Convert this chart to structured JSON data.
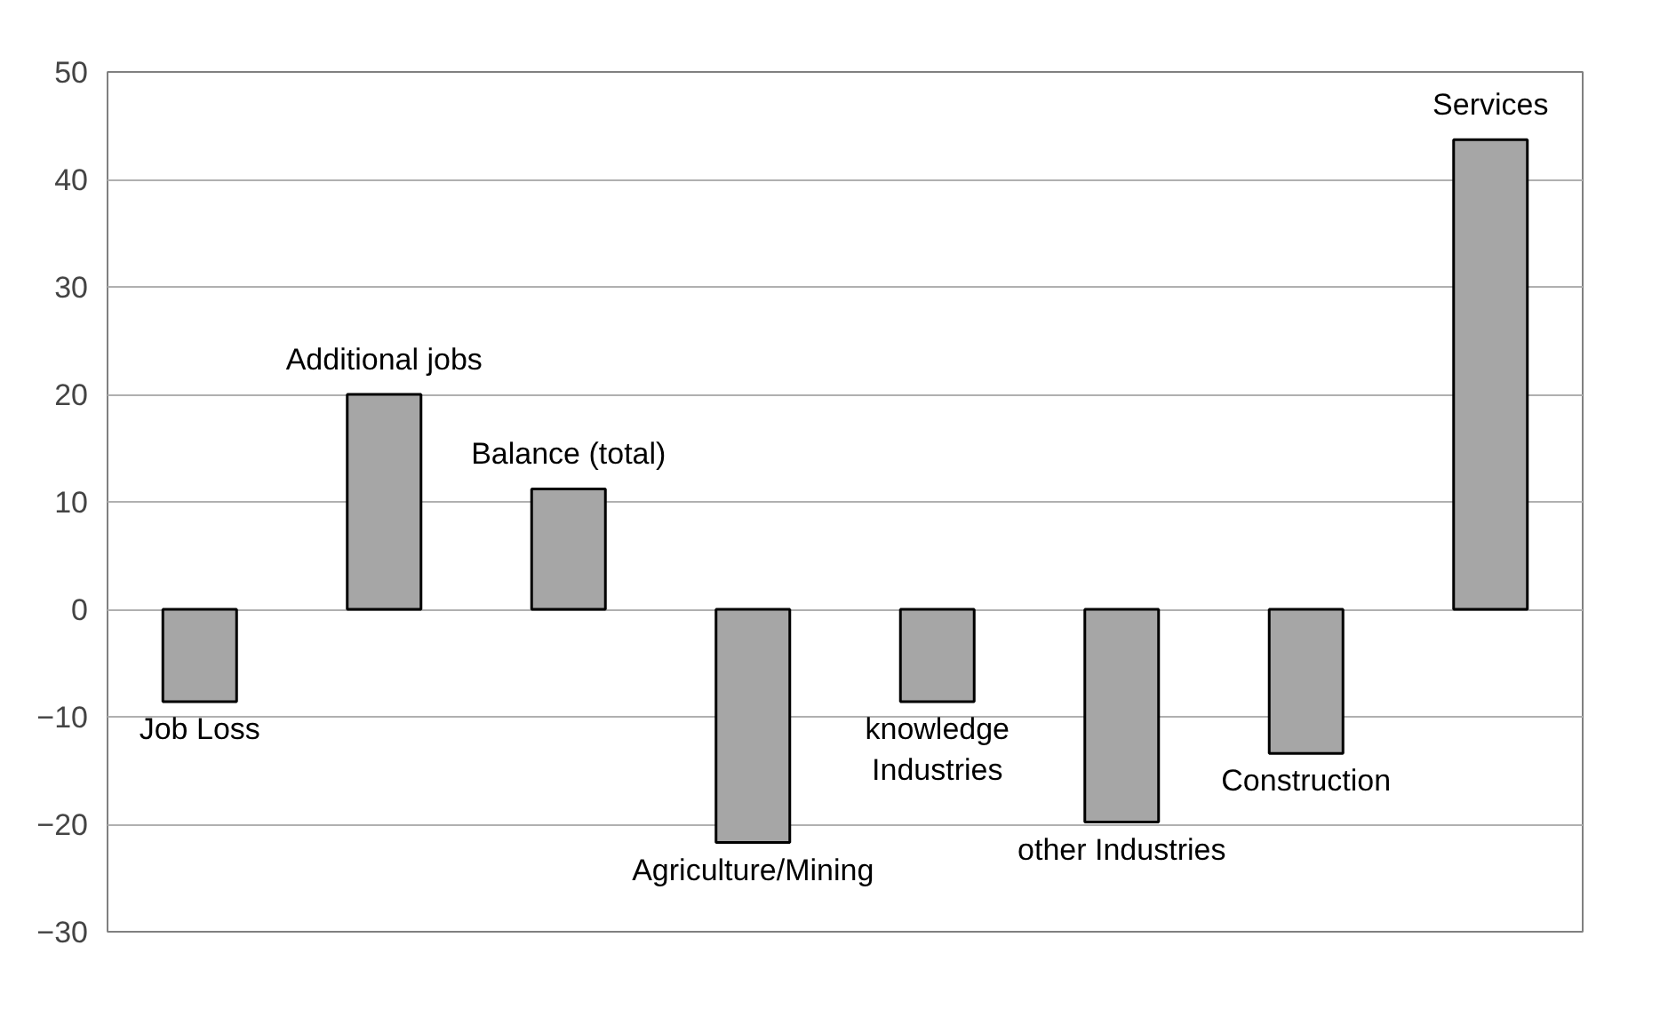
{
  "chart_data": {
    "type": "bar",
    "categories": [
      "Job Loss",
      "Additional jobs",
      "Balance (total)",
      "Agriculture/Mining",
      "knowledge\nIndustries",
      "other Industries",
      "Construction",
      "Services"
    ],
    "values": [
      -8.6,
      20,
      11.2,
      -21.7,
      -8.6,
      -19.8,
      -13.4,
      43.7
    ],
    "color": "#a6a6a6",
    "ylim": [
      -30,
      50
    ],
    "yticks": [
      -30,
      -20,
      -10,
      0,
      10,
      20,
      30,
      40,
      50
    ],
    "grid": "y",
    "tick_labels": "y"
  }
}
